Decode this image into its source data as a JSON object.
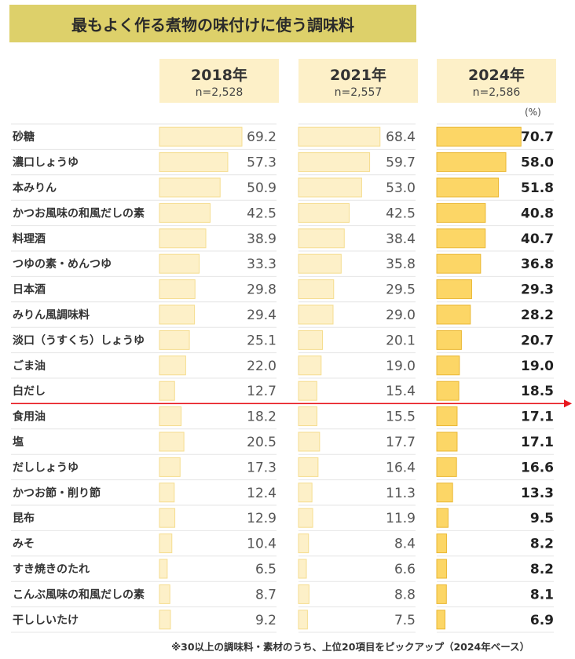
{
  "title": "最もよく作る煮物の味付けに使う調味料",
  "unit_label": "(%)",
  "footnote": "※30以上の調味料・素材のうち、上位20項目をピックアップ（2024年ベース）",
  "colors": {
    "title_bg": "#ddd06a",
    "header_bg": "#fdf0c8",
    "bar_light": "#fdf0c8",
    "bar_light_border": "#f5dd8f",
    "bar_bold": "#fcd666",
    "bar_bold_border": "#eab733",
    "cutoff_line": "#e8171e"
  },
  "chart_data": {
    "type": "bar",
    "orientation": "horizontal",
    "categories": [
      "砂糖",
      "濃口しょうゆ",
      "本みりん",
      "かつお風味の和風だしの素",
      "料理酒",
      "つゆの素・めんつゆ",
      "日本酒",
      "みりん風調味料",
      "淡口（うすくち）しょうゆ",
      "ごま油",
      "白だし",
      "食用油",
      "塩",
      "だししょうゆ",
      "かつお節・削り節",
      "昆布",
      "みそ",
      "すき焼きのたれ",
      "こんぶ風味の和風だしの素",
      "干ししいたけ"
    ],
    "series": [
      {
        "name": "2018年",
        "n_label": "n=2,528",
        "values": [
          69.2,
          57.3,
          50.9,
          42.5,
          38.9,
          33.3,
          29.8,
          29.4,
          25.1,
          22.0,
          12.7,
          18.2,
          20.5,
          17.3,
          12.4,
          12.9,
          10.4,
          6.5,
          8.7,
          9.2
        ]
      },
      {
        "name": "2021年",
        "n_label": "n=2,557",
        "values": [
          68.4,
          59.7,
          53.0,
          42.5,
          38.4,
          35.8,
          29.5,
          29.0,
          20.1,
          19.0,
          15.4,
          15.5,
          17.7,
          16.4,
          11.3,
          11.9,
          8.4,
          6.6,
          8.8,
          7.5
        ]
      },
      {
        "name": "2024年",
        "n_label": "n=2,586",
        "values": [
          70.7,
          58.0,
          51.8,
          40.8,
          40.7,
          36.8,
          29.3,
          28.2,
          20.7,
          19.0,
          18.5,
          17.1,
          17.1,
          16.6,
          13.3,
          9.5,
          8.2,
          8.2,
          8.1,
          6.9
        ]
      }
    ],
    "cutoff_after_index": 10,
    "value_format": "0.0"
  }
}
